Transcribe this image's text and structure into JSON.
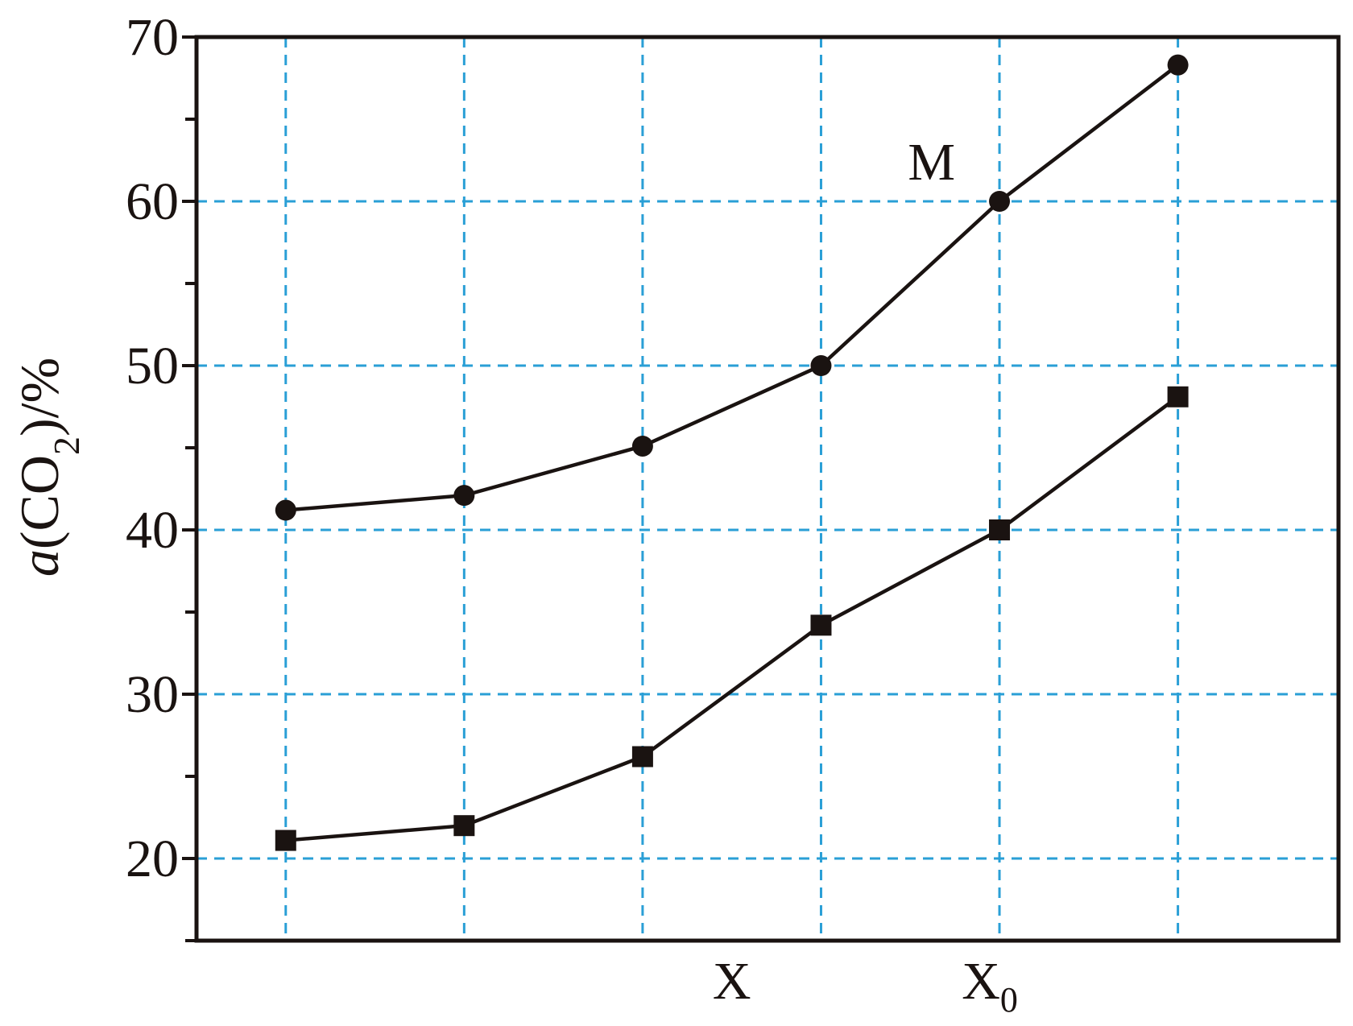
{
  "chart_data": {
    "type": "line",
    "ylabel": {
      "prefix": "a",
      "open": "(CO",
      "sub": "2",
      "close": ")/%"
    },
    "ylim": [
      15,
      70
    ],
    "y_major_ticks": [
      20,
      30,
      40,
      50,
      60,
      70
    ],
    "y_minor_ticks": [
      25,
      35,
      45,
      55,
      65
    ],
    "x": [
      1,
      2,
      3,
      4,
      5,
      6
    ],
    "xlim": [
      0.5,
      6.9
    ],
    "x_tick_labels": [
      {
        "x": 3.5,
        "text": "X",
        "sub": ""
      },
      {
        "x": 5,
        "text": "X",
        "sub": "0"
      }
    ],
    "grid": true,
    "grid_color": "#2a9fd6",
    "line_color": "#1a1311",
    "series": [
      {
        "marker": "circle",
        "values": [
          41.2,
          42.1,
          45.1,
          50.0,
          60.0,
          68.3
        ]
      },
      {
        "marker": "square",
        "values": [
          21.1,
          22.0,
          26.2,
          34.2,
          40.0,
          48.1
        ]
      }
    ],
    "annotations": [
      {
        "text": "M",
        "x": 4.8,
        "y": 62.5
      }
    ]
  }
}
